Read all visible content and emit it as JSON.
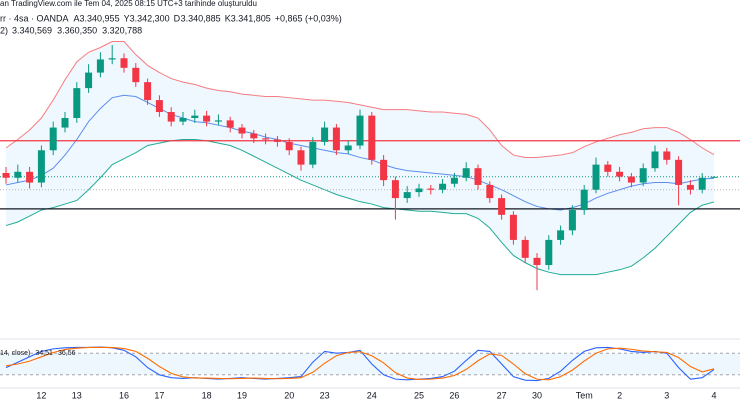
{
  "header": {
    "source": "an TradingView.com ile Tem 04, 2025 08:15 UTC+3 tarihinde oluşturuldu",
    "symbol": "rr · 4sa · OANDA",
    "ohlc": [
      {
        "key": "A",
        "label": "3.340,955"
      },
      {
        "key": "Y",
        "label": "3.342,300"
      },
      {
        "key": "D",
        "label": "3.340,885"
      },
      {
        "key": "K",
        "label": "3.341,805"
      }
    ],
    "change": "+0,865 (+0,03%)",
    "bb_prefix": "2)",
    "bb_labels": [
      "3.340,569",
      "3.360,350",
      "3.320,788"
    ],
    "stoch_prefix": "14, close)",
    "stoch_labels": [
      "34,51",
      "36,56"
    ]
  },
  "chart_data": [
    {
      "type": "candlestick",
      "categories": [
        null,
        null,
        null,
        "12",
        null,
        null,
        "13",
        null,
        null,
        null,
        "16",
        null,
        null,
        "17",
        null,
        null,
        null,
        "18",
        null,
        null,
        "19",
        null,
        null,
        null,
        "20",
        null,
        null,
        "23",
        null,
        null,
        null,
        "24",
        null,
        null,
        null,
        "25",
        null,
        null,
        "26",
        null,
        null,
        null,
        "27",
        null,
        null,
        "30",
        null,
        null,
        null,
        "Tem",
        null,
        null,
        "2",
        null,
        null,
        null,
        "3",
        null,
        null,
        null,
        "4"
      ],
      "open": [
        3345,
        3341,
        3346,
        3337,
        3364,
        3383,
        3391,
        3416,
        3429,
        3440,
        3441,
        3433,
        3421,
        3406,
        3396,
        3388,
        3391,
        3393,
        3388,
        3389,
        3383,
        3378,
        3374,
        3373,
        3371,
        3364,
        3352,
        3371,
        3383,
        3364,
        3368,
        3393,
        3356,
        3339,
        3324,
        3329,
        3332,
        3331,
        3336,
        3341,
        3349,
        3335,
        3324,
        3310,
        3289,
        3274,
        3268,
        3289,
        3297,
        3314,
        3331,
        3352,
        3346,
        3342,
        3337,
        3349,
        3363,
        3356,
        3335,
        3331,
        3340.955
      ],
      "high": [
        3350,
        3352,
        3350,
        3368,
        3388,
        3396,
        3421,
        3436,
        3446,
        3452,
        3445,
        3437,
        3424,
        3410,
        3400,
        3396,
        3398,
        3397,
        3394,
        3392,
        3386,
        3381,
        3378,
        3376,
        3374,
        3367,
        3375,
        3388,
        3386,
        3372,
        3398,
        3396,
        3360,
        3342,
        3334,
        3336,
        3335,
        3340,
        3345,
        3354,
        3352,
        3338,
        3327,
        3313,
        3292,
        3278,
        3293,
        3301,
        3318,
        3335,
        3358,
        3355,
        3350,
        3345,
        3353,
        3368,
        3366,
        3359,
        3339,
        3345,
        3342.3
      ],
      "low": [
        3336,
        3337,
        3332,
        3333,
        3360,
        3379,
        3387,
        3412,
        3425,
        3436,
        3429,
        3417,
        3402,
        3392,
        3384,
        3385,
        3387,
        3384,
        3385,
        3379,
        3374,
        3370,
        3369,
        3367,
        3360,
        3347,
        3349,
        3368,
        3360,
        3361,
        3365,
        3352,
        3334,
        3306,
        3320,
        3325,
        3327,
        3328,
        3333,
        3338,
        3331,
        3320,
        3306,
        3285,
        3270,
        3247,
        3264,
        3285,
        3293,
        3310,
        3328,
        3342,
        3338,
        3333,
        3334,
        3346,
        3352,
        3318,
        3327,
        3328,
        3340.885
      ],
      "close": [
        3341,
        3346,
        3337,
        3364,
        3383,
        3391,
        3416,
        3429,
        3440,
        3441,
        3433,
        3421,
        3406,
        3396,
        3388,
        3391,
        3393,
        3388,
        3389,
        3383,
        3378,
        3374,
        3373,
        3371,
        3364,
        3352,
        3371,
        3383,
        3364,
        3368,
        3393,
        3356,
        3339,
        3324,
        3329,
        3332,
        3331,
        3336,
        3341,
        3349,
        3335,
        3324,
        3310,
        3289,
        3274,
        3268,
        3289,
        3297,
        3314,
        3331,
        3352,
        3346,
        3342,
        3337,
        3349,
        3363,
        3356,
        3335,
        3331,
        3341,
        3341.805
      ],
      "up_color": "#089981",
      "down_color": "#f23645",
      "ylim": [
        3222,
        3473
      ],
      "bands": {
        "upper": [
          3366,
          3373,
          3381,
          3391,
          3406,
          3423,
          3438,
          3446,
          3450,
          3455,
          3455,
          3444,
          3435,
          3429,
          3424,
          3421,
          3419,
          3416,
          3414,
          3413,
          3411,
          3410,
          3409,
          3409,
          3408,
          3407,
          3406,
          3406,
          3405,
          3404,
          3402,
          3400,
          3398,
          3398,
          3398,
          3397,
          3396,
          3396,
          3395,
          3394,
          3391,
          3381,
          3368,
          3360,
          3358,
          3358,
          3359,
          3360,
          3362,
          3367,
          3371,
          3374,
          3377,
          3379,
          3382,
          3383,
          3383,
          3379,
          3373,
          3366,
          3360.35
        ],
        "middle": [
          3335,
          3337,
          3339,
          3343,
          3349,
          3360,
          3373,
          3388,
          3399,
          3408,
          3410,
          3409,
          3404,
          3399,
          3394,
          3391,
          3388,
          3387,
          3385,
          3383,
          3380,
          3378,
          3375,
          3373,
          3370,
          3368,
          3366,
          3364,
          3362,
          3361,
          3358,
          3356,
          3352,
          3349,
          3347,
          3346,
          3345,
          3344,
          3343,
          3342,
          3339,
          3335,
          3331,
          3326,
          3321,
          3317,
          3315,
          3314,
          3316,
          3319,
          3324,
          3328,
          3331,
          3334,
          3336,
          3337,
          3337,
          3336,
          3338,
          3340,
          3340.569
        ],
        "lower": [
          3301,
          3304,
          3309,
          3314,
          3316,
          3319,
          3322,
          3331,
          3341,
          3352,
          3357,
          3362,
          3368,
          3370,
          3372,
          3373,
          3373,
          3372,
          3370,
          3368,
          3364,
          3359,
          3354,
          3349,
          3344,
          3339,
          3335,
          3331,
          3327,
          3324,
          3321,
          3319,
          3316,
          3315,
          3314,
          3313,
          3313,
          3312,
          3311,
          3311,
          3307,
          3299,
          3287,
          3276,
          3270,
          3265,
          3262,
          3260,
          3260,
          3260,
          3260,
          3262,
          3264,
          3267,
          3274,
          3282,
          3292,
          3302,
          3312,
          3318,
          3320.788
        ],
        "upper_color": "#f77c80",
        "middle_color": "#5b8def",
        "lower_color": "#22ab94",
        "fill": "#2196f3"
      },
      "hlines": [
        {
          "value": 3372,
          "color": "#f23645",
          "style": "solid"
        },
        {
          "value": 3315,
          "color": "#131722",
          "style": "solid"
        },
        {
          "value": 3341.805,
          "color": "#089981",
          "style": "dotted"
        },
        {
          "value": 3331,
          "color": "#b2b5be",
          "style": "dotted"
        }
      ]
    },
    {
      "type": "line",
      "ylim": [
        0,
        100
      ],
      "levels": [
        80,
        20
      ],
      "series": [
        {
          "name": "K",
          "color": "#2962ff",
          "values": [
            40,
            55,
            70,
            85,
            92,
            95,
            96,
            96,
            97,
            95,
            88,
            70,
            40,
            20,
            12,
            10,
            12,
            10,
            8,
            10,
            12,
            10,
            8,
            10,
            12,
            15,
            55,
            85,
            80,
            82,
            88,
            50,
            20,
            8,
            6,
            8,
            10,
            15,
            30,
            60,
            88,
            85,
            50,
            15,
            5,
            4,
            10,
            30,
            60,
            85,
            95,
            96,
            92,
            85,
            82,
            85,
            80,
            40,
            8,
            12,
            34.51
          ]
        },
        {
          "name": "D",
          "color": "#ff6d00",
          "values": [
            45,
            50,
            58,
            70,
            82,
            90,
            94,
            96,
            96,
            96,
            93,
            85,
            66,
            43,
            24,
            14,
            11,
            11,
            10,
            9,
            10,
            11,
            10,
            9,
            10,
            12,
            27,
            52,
            73,
            82,
            84,
            73,
            53,
            26,
            11,
            7,
            8,
            11,
            18,
            35,
            59,
            78,
            74,
            50,
            23,
            8,
            6,
            15,
            33,
            58,
            80,
            92,
            94,
            91,
            86,
            84,
            82,
            68,
            43,
            28,
            36.56
          ]
        }
      ]
    }
  ]
}
